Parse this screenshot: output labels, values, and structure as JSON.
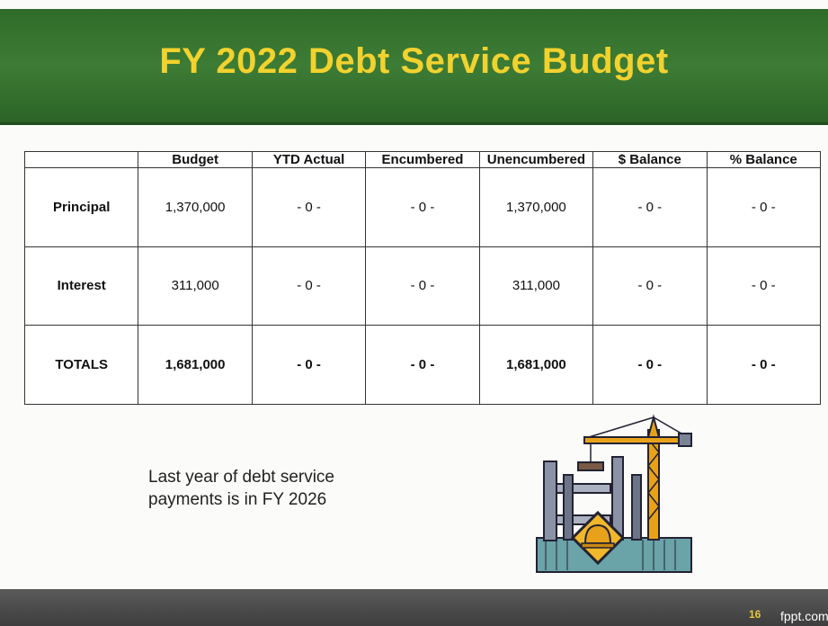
{
  "header": {
    "title": "FY 2022 Debt Service Budget"
  },
  "table": {
    "columns": [
      "Budget",
      "YTD Actual",
      "Encumbered",
      "Unencumbered",
      "$ Balance",
      "% Balance"
    ],
    "rows": [
      {
        "label": "Principal",
        "cells": [
          "1,370,000",
          "- 0 -",
          "- 0 -",
          "1,370,000",
          "- 0 -",
          "- 0 -"
        ]
      },
      {
        "label": "Interest",
        "cells": [
          "311,000",
          "- 0 -",
          "- 0 -",
          "311,000",
          "- 0 -",
          "- 0 -"
        ]
      },
      {
        "label": "TOTALS",
        "cells": [
          "1,681,000",
          "- 0 -",
          "- 0 -",
          "1,681,000",
          "- 0 -",
          "- 0 -"
        ]
      }
    ]
  },
  "note": "Last year of debt service payments is in FY 2026",
  "footer": {
    "page": "16",
    "site": "fppt.com"
  }
}
